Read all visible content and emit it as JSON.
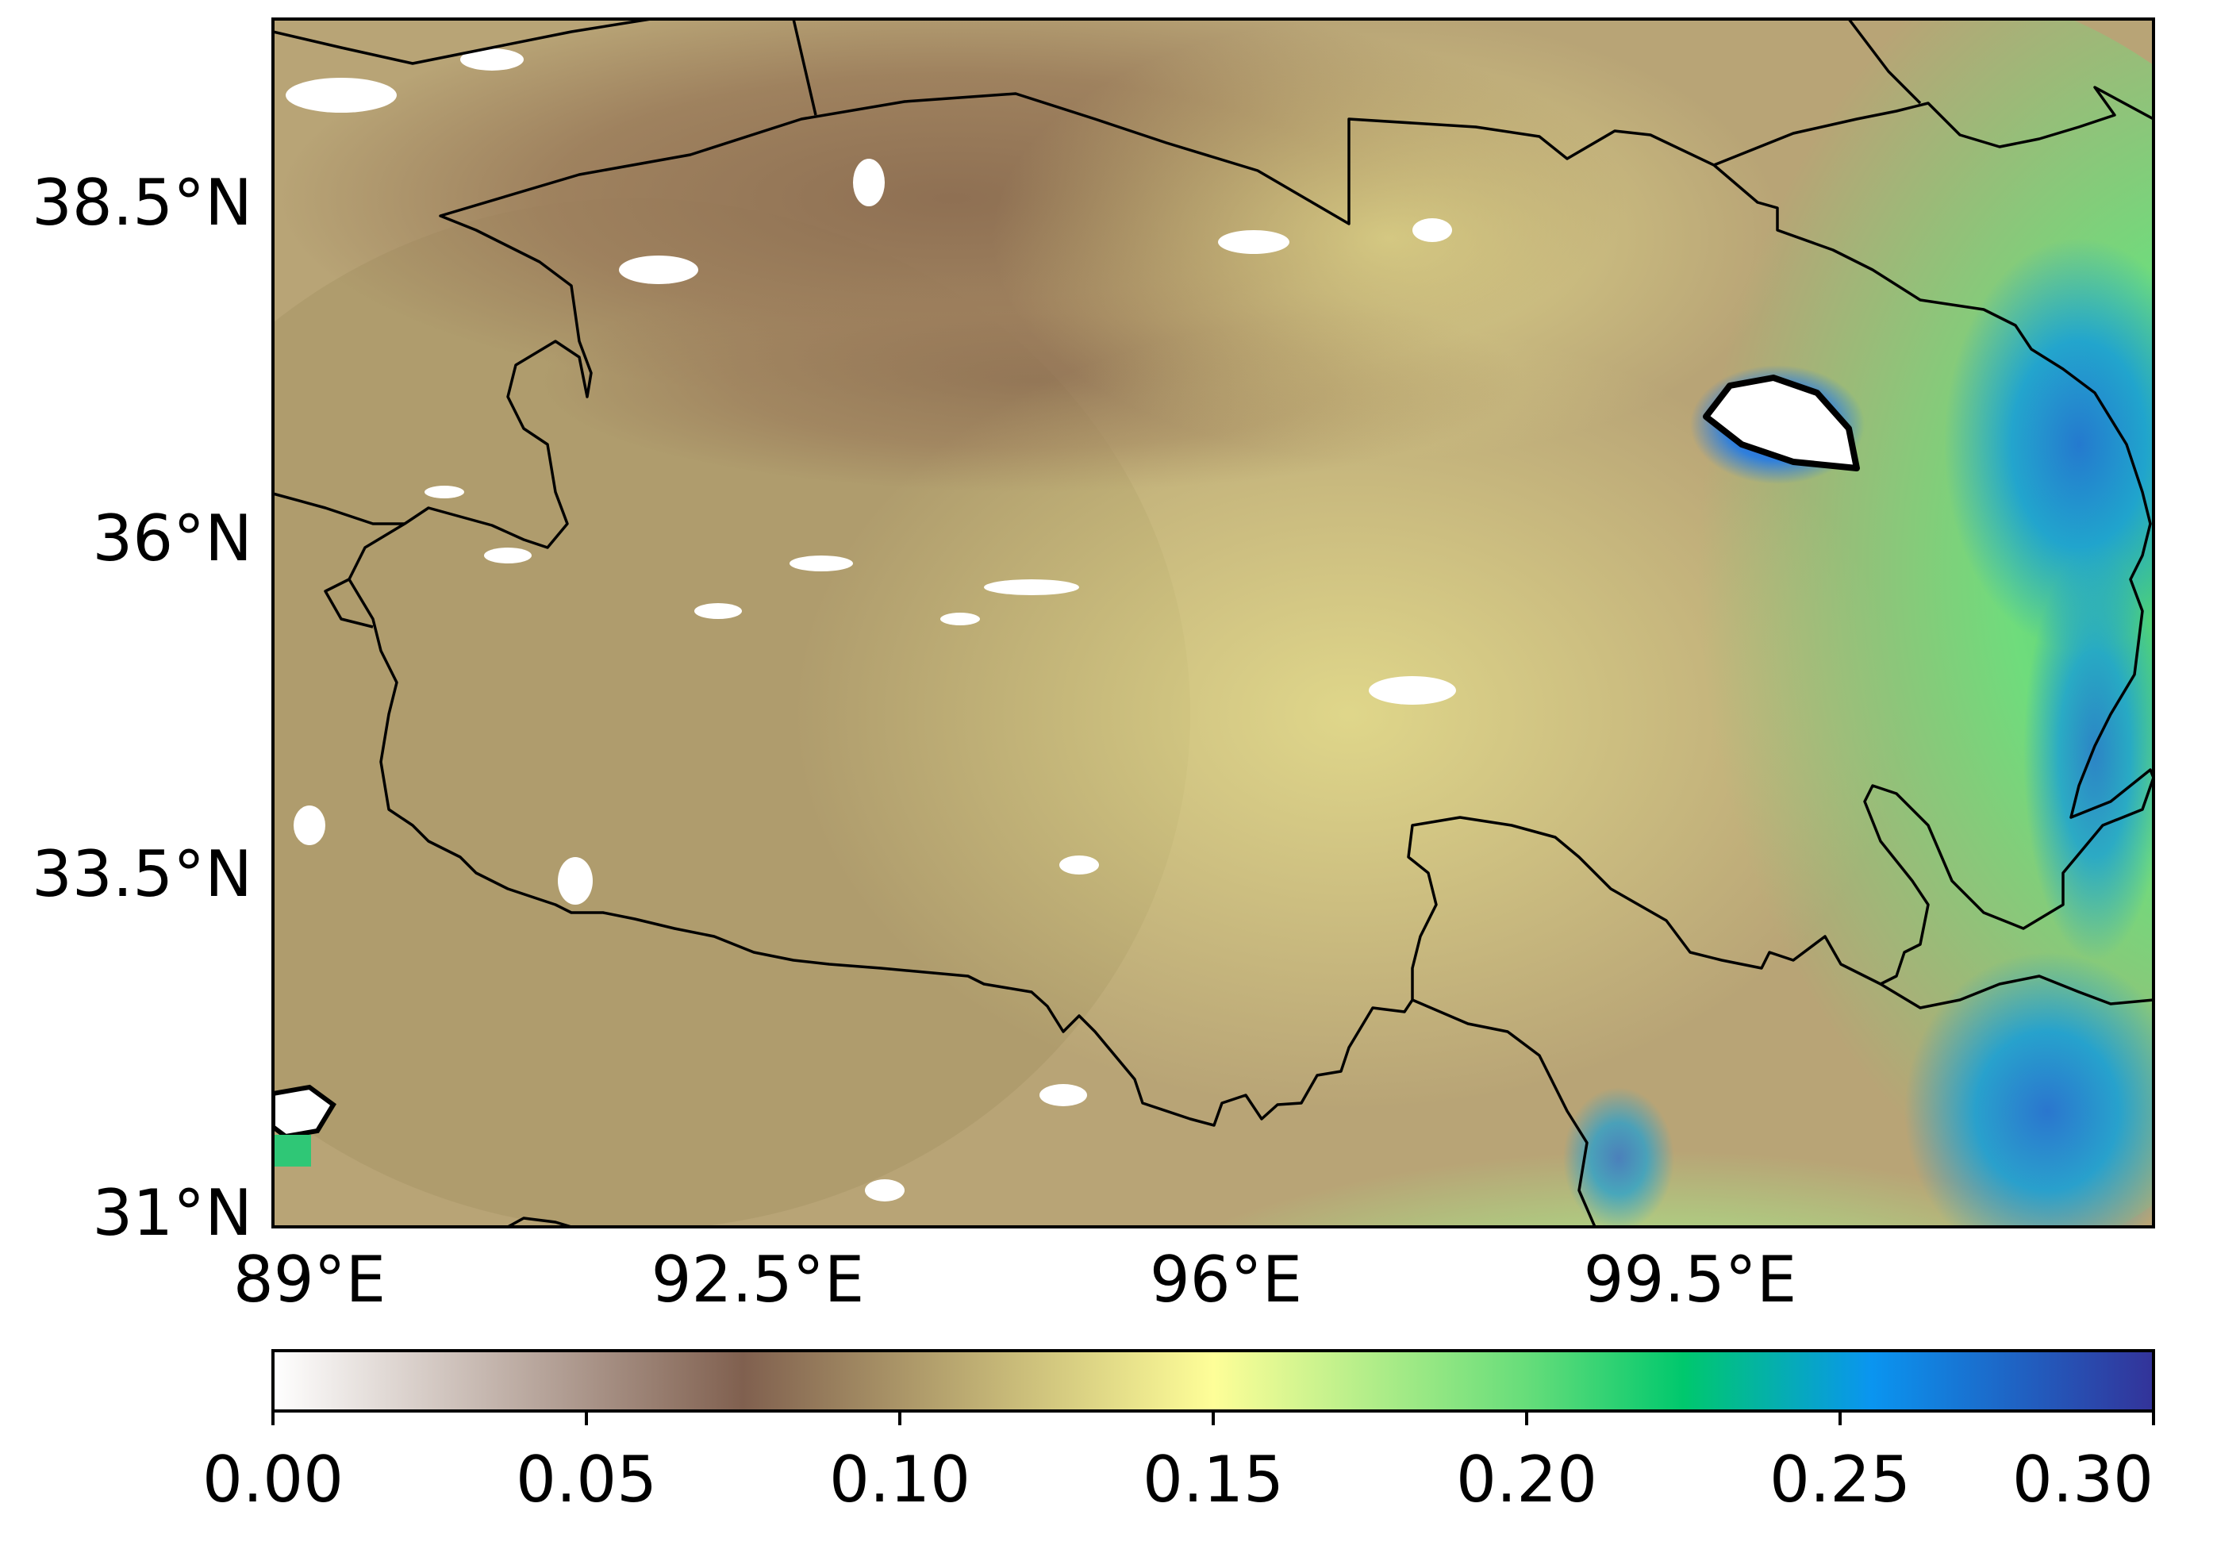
{
  "map": {
    "latitude_ticks": [
      "38.5°N",
      "36°N",
      "33.5°N",
      "31°N"
    ],
    "longitude_ticks": [
      "89°E",
      "92.5°E",
      "96°E",
      "99.5°E"
    ],
    "extent": {
      "lon_min": 89,
      "lon_max": 103,
      "lat_min": 31,
      "lat_max": 40
    },
    "colors": {
      "boundary": "#000000",
      "lake": "#ffffff"
    }
  },
  "colorbar": {
    "ticks": [
      "0.00",
      "0.05",
      "0.10",
      "0.15",
      "0.20",
      "0.25",
      "0.30"
    ],
    "range": [
      0.0,
      0.3
    ],
    "colormap": "terrain_r",
    "stops": [
      {
        "value": 0.0,
        "color": "#ffffff"
      },
      {
        "value": 0.075,
        "color": "#80604f"
      },
      {
        "value": 0.15,
        "color": "#fefe98"
      },
      {
        "value": 0.2,
        "color": "#66dd7a"
      },
      {
        "value": 0.225,
        "color": "#00c86d"
      },
      {
        "value": 0.255,
        "color": "#0a95f0"
      },
      {
        "value": 0.3,
        "color": "#333399"
      }
    ]
  }
}
